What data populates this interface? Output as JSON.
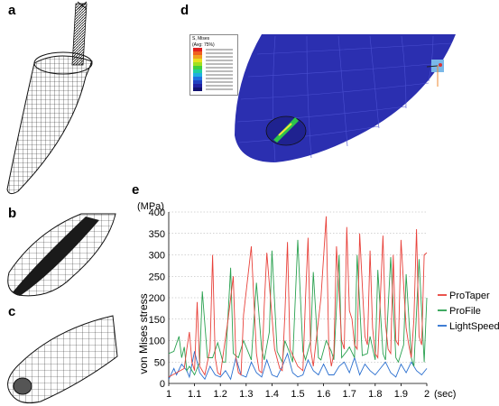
{
  "panels": {
    "a": "a",
    "b": "b",
    "c": "c",
    "d": "d",
    "e": "e"
  },
  "colors": {
    "protaper": "#e8413a",
    "profile": "#2aa150",
    "lightspeed": "#2a6fcf",
    "fea_body": "#2b2fb0",
    "mesh": "#222222"
  },
  "contour_legend": {
    "title": "S, Mises",
    "subtitle": "(Avg: 75%)"
  },
  "chart_data": {
    "type": "line",
    "title": "",
    "xlabel": "(sec)",
    "ylabel": "von Mises stress",
    "yunit": "(MPa)",
    "xlim": [
      1,
      2
    ],
    "ylim": [
      0,
      400
    ],
    "xticks": [
      "1",
      "1.1",
      "1.2",
      "1.3",
      "1.4",
      "1.5",
      "1.6",
      "1.7",
      "1.8",
      "1.9",
      "2"
    ],
    "yticks": [
      "0",
      "50",
      "100",
      "150",
      "200",
      "250",
      "300",
      "350",
      "400"
    ],
    "grid": "horizontal dotted",
    "legend_position": "right",
    "series": [
      {
        "name": "ProTaper",
        "x": [
          1.0,
          1.03,
          1.06,
          1.07,
          1.08,
          1.09,
          1.1,
          1.11,
          1.12,
          1.14,
          1.16,
          1.17,
          1.18,
          1.19,
          1.2,
          1.23,
          1.25,
          1.26,
          1.27,
          1.28,
          1.29,
          1.32,
          1.34,
          1.35,
          1.36,
          1.37,
          1.38,
          1.41,
          1.43,
          1.44,
          1.45,
          1.46,
          1.47,
          1.5,
          1.52,
          1.53,
          1.54,
          1.55,
          1.56,
          1.59,
          1.61,
          1.62,
          1.63,
          1.64,
          1.65,
          1.67,
          1.68,
          1.69,
          1.7,
          1.71,
          1.72,
          1.73,
          1.74,
          1.76,
          1.77,
          1.78,
          1.79,
          1.8,
          1.81,
          1.83,
          1.84,
          1.85,
          1.86,
          1.87,
          1.88,
          1.89,
          1.9,
          1.92,
          1.93,
          1.94,
          1.95,
          1.96,
          1.97,
          1.98,
          1.99,
          2.0
        ],
        "y": [
          15,
          25,
          35,
          80,
          120,
          50,
          30,
          190,
          40,
          20,
          80,
          300,
          60,
          25,
          20,
          150,
          250,
          60,
          25,
          20,
          160,
          320,
          70,
          30,
          25,
          180,
          305,
          80,
          35,
          30,
          160,
          330,
          80,
          40,
          30,
          200,
          340,
          80,
          40,
          200,
          390,
          90,
          40,
          70,
          320,
          100,
          80,
          365,
          170,
          150,
          90,
          80,
          350,
          110,
          90,
          310,
          130,
          70,
          60,
          345,
          140,
          80,
          70,
          300,
          100,
          90,
          335,
          130,
          90,
          60,
          150,
          360,
          110,
          90,
          300,
          305
        ]
      },
      {
        "name": "ProFile",
        "x": [
          1.0,
          1.02,
          1.04,
          1.05,
          1.06,
          1.07,
          1.08,
          1.1,
          1.12,
          1.13,
          1.15,
          1.17,
          1.19,
          1.21,
          1.22,
          1.24,
          1.25,
          1.27,
          1.29,
          1.31,
          1.32,
          1.34,
          1.36,
          1.37,
          1.39,
          1.4,
          1.42,
          1.44,
          1.45,
          1.47,
          1.48,
          1.5,
          1.52,
          1.53,
          1.55,
          1.56,
          1.58,
          1.59,
          1.61,
          1.63,
          1.64,
          1.66,
          1.67,
          1.69,
          1.7,
          1.72,
          1.73,
          1.75,
          1.77,
          1.78,
          1.8,
          1.81,
          1.83,
          1.84,
          1.86,
          1.88,
          1.89,
          1.91,
          1.92,
          1.94,
          1.95,
          1.97,
          1.99,
          2.0
        ],
        "y": [
          70,
          75,
          110,
          60,
          85,
          30,
          40,
          20,
          50,
          215,
          60,
          60,
          95,
          50,
          50,
          270,
          70,
          60,
          100,
          70,
          55,
          235,
          80,
          55,
          120,
          310,
          75,
          50,
          100,
          70,
          50,
          335,
          75,
          55,
          100,
          260,
          60,
          55,
          100,
          75,
          55,
          300,
          60,
          75,
          85,
          60,
          300,
          65,
          70,
          110,
          55,
          265,
          70,
          55,
          295,
          60,
          50,
          90,
          255,
          60,
          40,
          290,
          50,
          200
        ]
      },
      {
        "name": "LightSpeed",
        "x": [
          1.0,
          1.02,
          1.03,
          1.05,
          1.07,
          1.08,
          1.1,
          1.12,
          1.14,
          1.16,
          1.18,
          1.2,
          1.22,
          1.24,
          1.26,
          1.28,
          1.3,
          1.32,
          1.34,
          1.36,
          1.38,
          1.4,
          1.42,
          1.44,
          1.46,
          1.48,
          1.5,
          1.52,
          1.54,
          1.56,
          1.58,
          1.6,
          1.62,
          1.64,
          1.66,
          1.68,
          1.7,
          1.72,
          1.74,
          1.76,
          1.78,
          1.8,
          1.82,
          1.84,
          1.86,
          1.88,
          1.9,
          1.92,
          1.94,
          1.96,
          1.98,
          2.0
        ],
        "y": [
          10,
          35,
          20,
          45,
          30,
          15,
          75,
          25,
          10,
          40,
          20,
          15,
          30,
          10,
          60,
          20,
          15,
          50,
          25,
          15,
          55,
          20,
          15,
          40,
          70,
          25,
          15,
          20,
          55,
          30,
          20,
          45,
          20,
          20,
          40,
          50,
          25,
          60,
          20,
          45,
          30,
          20,
          35,
          50,
          25,
          15,
          45,
          25,
          50,
          30,
          20,
          35
        ]
      }
    ]
  }
}
